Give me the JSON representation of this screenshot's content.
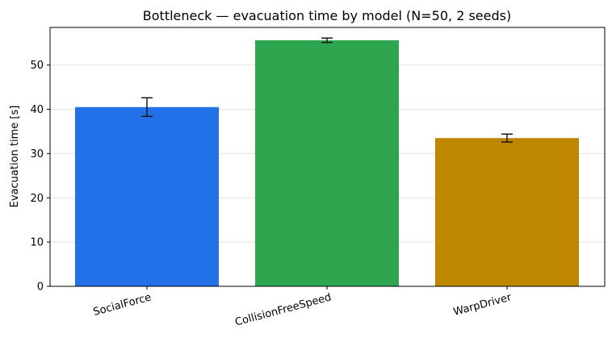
{
  "chart_data": {
    "type": "bar",
    "title": "Bottleneck — evacuation time by model  (N=50, 2 seeds)",
    "xlabel": "",
    "ylabel": "Evacuation time [s]",
    "categories": [
      "SocialForce",
      "CollisionFreeSpeed",
      "WarpDriver"
    ],
    "values": [
      40.5,
      55.6,
      33.5
    ],
    "errors": [
      2.1,
      0.5,
      0.9
    ],
    "colors": [
      "#2271e8",
      "#2ea650",
      "#bf8700"
    ],
    "ylim": [
      0,
      58.5
    ],
    "yticks": [
      0,
      10,
      20,
      30,
      40,
      50
    ],
    "grid": "horizontal",
    "legend": "none"
  }
}
